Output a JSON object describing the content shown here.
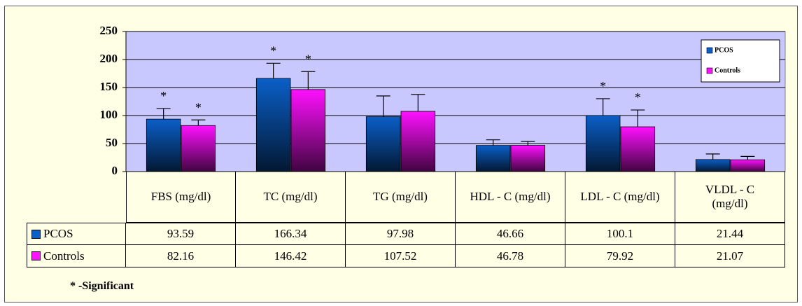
{
  "chart_data": {
    "type": "bar",
    "categories": [
      "FBS (mg/dl)",
      "TC (mg/dl)",
      "TG (mg/dl)",
      "HDL - C (mg/dl)",
      "LDL - C (mg/dl)",
      "VLDL - C (mg/dl)"
    ],
    "series": [
      {
        "name": "PCOS",
        "color": "#0a5fc8",
        "values": [
          93.59,
          166.34,
          97.98,
          46.66,
          100.1,
          21.44
        ],
        "errors": [
          19,
          27,
          37,
          10,
          30,
          10
        ],
        "markers": [
          "*",
          "*",
          null,
          null,
          "*",
          null
        ]
      },
      {
        "name": "Controls",
        "color": "#ff10ff",
        "values": [
          82.16,
          146.42,
          107.52,
          46.78,
          79.92,
          21.07
        ],
        "errors": [
          10,
          32,
          30,
          7,
          30,
          6
        ],
        "markers": [
          "*",
          "*",
          null,
          null,
          "*",
          null
        ]
      }
    ],
    "ylim": [
      0,
      250
    ],
    "yticks": [
      0,
      50,
      100,
      150,
      200,
      250
    ],
    "grid": true,
    "legend": "upper right",
    "footnote": "* -Significant"
  }
}
